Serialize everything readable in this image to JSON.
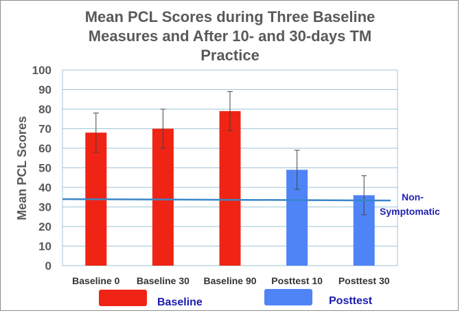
{
  "chart_data": {
    "type": "bar",
    "title_lines": [
      "Mean PCL Scores during Three Baseline",
      "Measures and After 10- and 30-days TM",
      "Practice"
    ],
    "xlabel": "",
    "ylabel": "Mean PCL Scores",
    "ylim": [
      0,
      100
    ],
    "yticks": [
      0,
      10,
      20,
      30,
      40,
      50,
      60,
      70,
      80,
      90,
      100
    ],
    "grid": "horizontal",
    "categories": [
      "Baseline 0",
      "Baseline 30",
      "Baseline 90",
      "Posttest 10",
      "Posttest 30"
    ],
    "values": [
      68,
      70,
      79,
      49,
      36
    ],
    "error_bars": [
      [
        58,
        78
      ],
      [
        60,
        80
      ],
      [
        69,
        89
      ],
      [
        39,
        59
      ],
      [
        26,
        46
      ]
    ],
    "bar_group": [
      "Baseline",
      "Baseline",
      "Baseline",
      "Posttest",
      "Posttest"
    ],
    "reference_line": {
      "label_lines": [
        "Non-",
        "Symptomatic"
      ],
      "y_start": 34,
      "y_end": 33.3,
      "color": "#3a86c8"
    },
    "legend": {
      "placement": "bottom",
      "items": [
        {
          "name": "Baseline",
          "group": "Baseline"
        },
        {
          "name": "Posttest",
          "group": "Posttest"
        }
      ]
    },
    "colors": {
      "Baseline": "#f02414",
      "Posttest": "#4f84f7",
      "grid": "#9ec5d6",
      "axis_text": "#595959"
    }
  }
}
